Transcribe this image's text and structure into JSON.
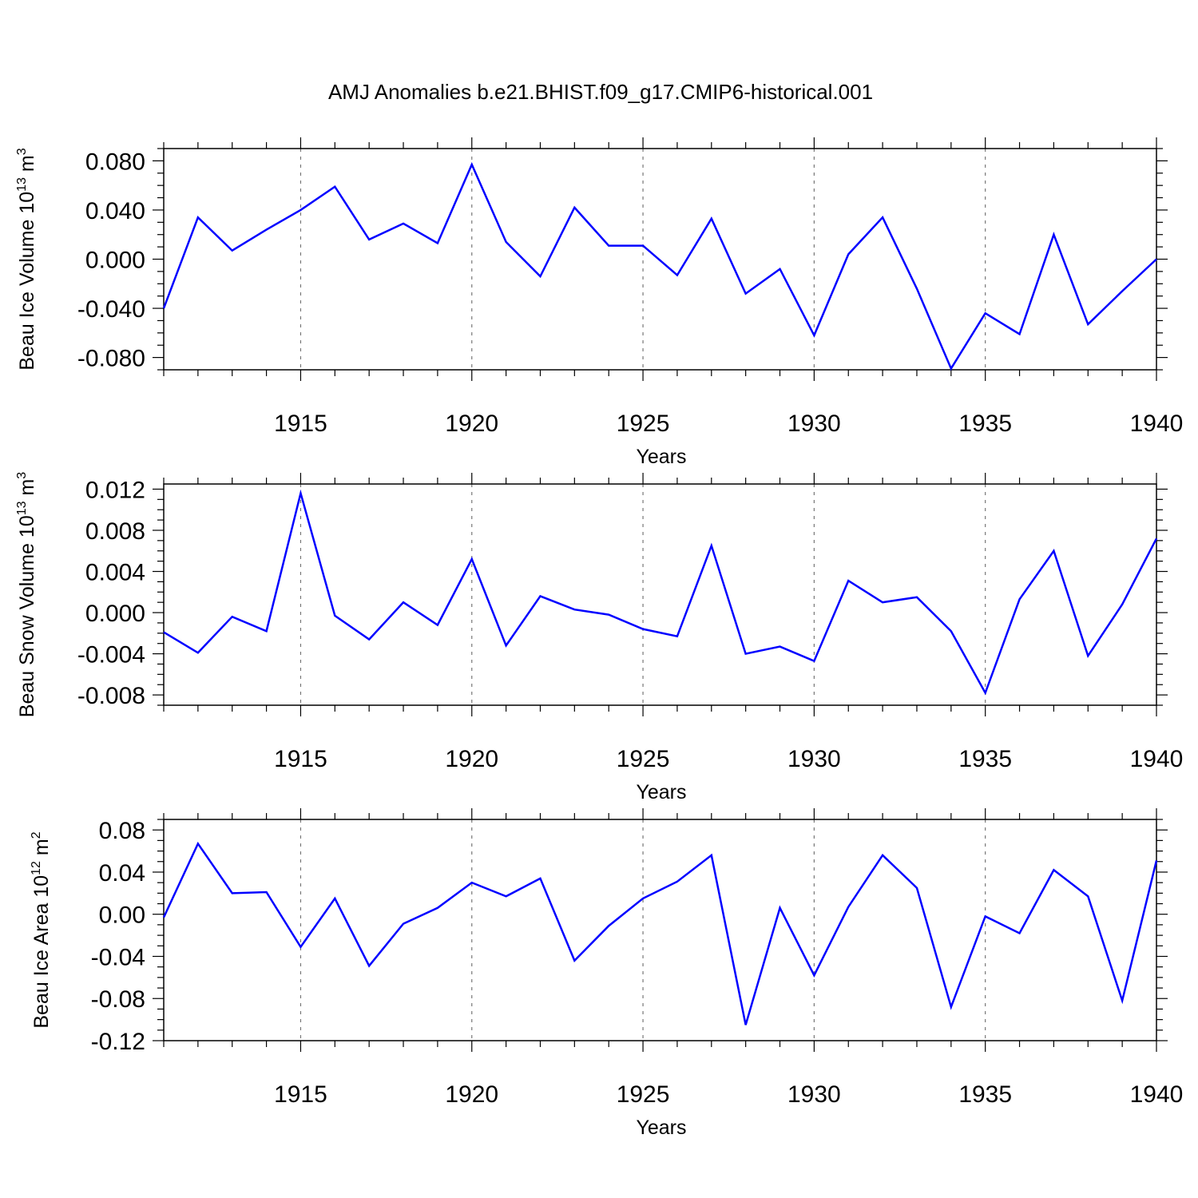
{
  "title": "AMJ Anomalies b.e21.BHIST.f09_g17.CMIP6-historical.001",
  "colors": {
    "line": "#0000ff",
    "grid": "#777777",
    "axis": "#000000"
  },
  "chart_data": [
    {
      "type": "line",
      "ylabel_main": "Beau Ice Volume 10",
      "ylabel_exp": "13",
      "ylabel_unit": " m",
      "ylabel_unit_exp": "3",
      "xlabel": "Years",
      "xlim": [
        1911,
        1940
      ],
      "ylim": [
        -0.09,
        0.09
      ],
      "x_ticks": [
        1915,
        1920,
        1925,
        1930,
        1935,
        1940
      ],
      "y_ticks": [
        -0.08,
        -0.04,
        0.0,
        0.04,
        0.08
      ],
      "y_tick_labels": [
        "-0.080",
        "-0.040",
        "0.000",
        "0.040",
        "0.080"
      ],
      "x_minor_step": 1,
      "y_minor_step": 0.01,
      "grid": "vertical dashed at major x ticks",
      "x": [
        1911,
        1912,
        1913,
        1914,
        1915,
        1916,
        1917,
        1918,
        1919,
        1920,
        1921,
        1922,
        1923,
        1924,
        1925,
        1926,
        1927,
        1928,
        1929,
        1930,
        1931,
        1932,
        1933,
        1934,
        1935,
        1936,
        1937,
        1938,
        1939,
        1940
      ],
      "series": [
        {
          "values": [
            -0.04,
            0.034,
            0.007,
            0.024,
            0.04,
            0.059,
            0.016,
            0.029,
            0.013,
            0.077,
            0.014,
            -0.014,
            0.042,
            0.011,
            0.011,
            -0.013,
            0.033,
            -0.028,
            -0.008,
            -0.062,
            0.004,
            0.034,
            -0.024,
            -0.089,
            -0.044,
            -0.061,
            0.02,
            -0.053,
            -0.026,
            0.0
          ]
        }
      ]
    },
    {
      "type": "line",
      "ylabel_main": "Beau Snow Volume 10",
      "ylabel_exp": "13",
      "ylabel_unit": " m",
      "ylabel_unit_exp": "3",
      "xlabel": "Years",
      "xlim": [
        1911,
        1940
      ],
      "ylim": [
        -0.009,
        0.0125
      ],
      "x_ticks": [
        1915,
        1920,
        1925,
        1930,
        1935,
        1940
      ],
      "y_ticks": [
        -0.008,
        -0.004,
        0.0,
        0.004,
        0.008,
        0.012
      ],
      "y_tick_labels": [
        "-0.008",
        "-0.004",
        "0.000",
        "0.004",
        "0.008",
        "0.012"
      ],
      "x_minor_step": 1,
      "y_minor_step": 0.001,
      "grid": "vertical dashed at major x ticks",
      "x": [
        1911,
        1912,
        1913,
        1914,
        1915,
        1916,
        1917,
        1918,
        1919,
        1920,
        1921,
        1922,
        1923,
        1924,
        1925,
        1926,
        1927,
        1928,
        1929,
        1930,
        1931,
        1932,
        1933,
        1934,
        1935,
        1936,
        1937,
        1938,
        1939,
        1940
      ],
      "series": [
        {
          "values": [
            -0.0019,
            -0.0039,
            -0.0004,
            -0.0018,
            0.0116,
            -0.0003,
            -0.0026,
            0.001,
            -0.0012,
            0.0052,
            -0.0032,
            0.0016,
            0.0003,
            -0.0002,
            -0.0016,
            -0.0023,
            0.0065,
            -0.004,
            -0.0033,
            -0.0047,
            0.0031,
            0.001,
            0.0015,
            -0.0018,
            -0.0078,
            0.0013,
            0.006,
            -0.0042,
            0.0008,
            0.0072
          ]
        }
      ]
    },
    {
      "type": "line",
      "ylabel_main": "Beau Ice Area 10",
      "ylabel_exp": "12",
      "ylabel_unit": " m",
      "ylabel_unit_exp": "2",
      "xlabel": "Years",
      "xlim": [
        1911,
        1940
      ],
      "ylim": [
        -0.12,
        0.09
      ],
      "x_ticks": [
        1915,
        1920,
        1925,
        1930,
        1935,
        1940
      ],
      "y_ticks": [
        -0.12,
        -0.08,
        -0.04,
        0.0,
        0.04,
        0.08
      ],
      "y_tick_labels": [
        "-0.12",
        "-0.08",
        "-0.04",
        "0.00",
        "0.04",
        "0.08"
      ],
      "x_minor_step": 1,
      "y_minor_step": 0.01,
      "grid": "vertical dashed at major x ticks",
      "x": [
        1911,
        1912,
        1913,
        1914,
        1915,
        1916,
        1917,
        1918,
        1919,
        1920,
        1921,
        1922,
        1923,
        1924,
        1925,
        1926,
        1927,
        1928,
        1929,
        1930,
        1931,
        1932,
        1933,
        1934,
        1935,
        1936,
        1937,
        1938,
        1939,
        1940
      ],
      "series": [
        {
          "values": [
            -0.003,
            0.067,
            0.02,
            0.021,
            -0.031,
            0.015,
            -0.049,
            -0.009,
            0.006,
            0.03,
            0.017,
            0.034,
            -0.044,
            -0.011,
            0.015,
            0.031,
            0.056,
            -0.105,
            0.006,
            -0.058,
            0.007,
            0.056,
            0.025,
            -0.088,
            -0.002,
            -0.018,
            0.042,
            0.017,
            -0.082,
            0.051
          ]
        }
      ]
    }
  ]
}
